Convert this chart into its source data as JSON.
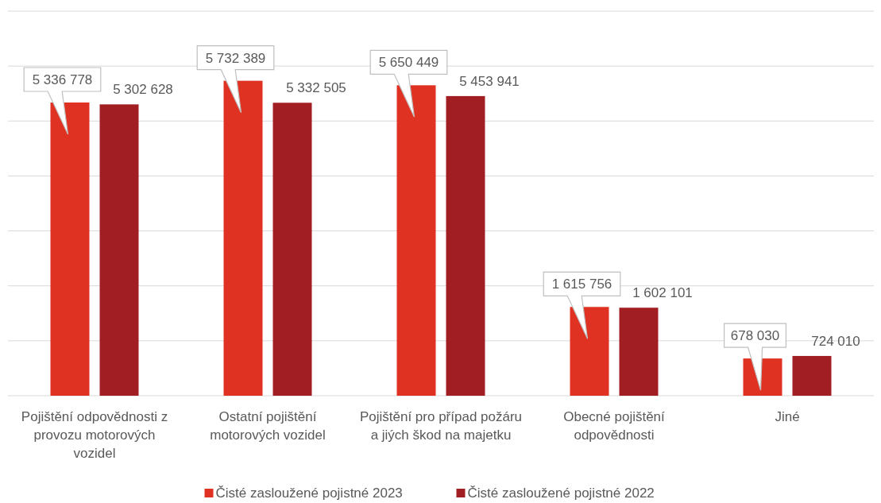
{
  "chart_data": {
    "type": "bar",
    "categories": [
      "Pojištění odpovědnosti z provozu motorových vozidel",
      "Ostatní pojištění motorových vozidel",
      "Pojištění pro případ požáru a jiých škod na majetku",
      "Obecné pojištění odpovědnosti",
      "Jiné"
    ],
    "series": [
      {
        "name": "Čisté zasloužené pojistné 2023",
        "color": "#e03222",
        "values": [
          5336778,
          5732389,
          5650449,
          1615756,
          678030
        ]
      },
      {
        "name": "Čisté zasloužené pojistné 2022",
        "color": "#a11f22",
        "values": [
          5302628,
          5332505,
          5453941,
          1602101,
          724010
        ]
      }
    ],
    "ylim": [
      0,
      7000000
    ],
    "yticks": [
      {
        "value": 0,
        "label": null
      },
      {
        "value": 1000000,
        "label": null
      },
      {
        "value": 2000000,
        "label": null
      },
      {
        "value": 3000000,
        "label": null
      },
      {
        "value": 4000000,
        "label": null
      },
      {
        "value": 5000000,
        "label": null
      },
      {
        "value": 6000000,
        "label": null
      },
      {
        "value": 7000000,
        "label": null
      }
    ],
    "grid": "y",
    "legend": "bottom",
    "data_labels": true,
    "tick_labels": "x"
  }
}
